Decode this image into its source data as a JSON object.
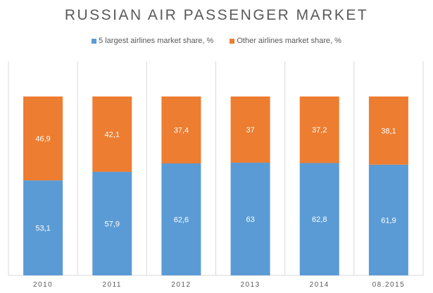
{
  "chart_data": {
    "type": "bar",
    "stacked": true,
    "title": "RUSSIAN AIR PASSENGER MARKET",
    "categories": [
      "2010",
      "2011",
      "2012",
      "2013",
      "2014",
      "08.2015"
    ],
    "series": [
      {
        "name": "5 largest airlines market share, %",
        "color": "#5B9BD5",
        "values": [
          53.1,
          57.9,
          62.6,
          63,
          62.8,
          61.9
        ],
        "labels": [
          "53,1",
          "57,9",
          "62,6",
          "63",
          "62,8",
          "61,9"
        ]
      },
      {
        "name": "Other airlines market share, %",
        "color": "#ED7D31",
        "values": [
          46.9,
          42.1,
          37.4,
          37,
          37.2,
          38.1
        ],
        "labels": [
          "46,9",
          "42,1",
          "37,4",
          "37",
          "37,2",
          "38,1"
        ]
      }
    ],
    "ylim": [
      0,
      100
    ],
    "legend": "top",
    "xlabel": "",
    "ylabel": ""
  }
}
